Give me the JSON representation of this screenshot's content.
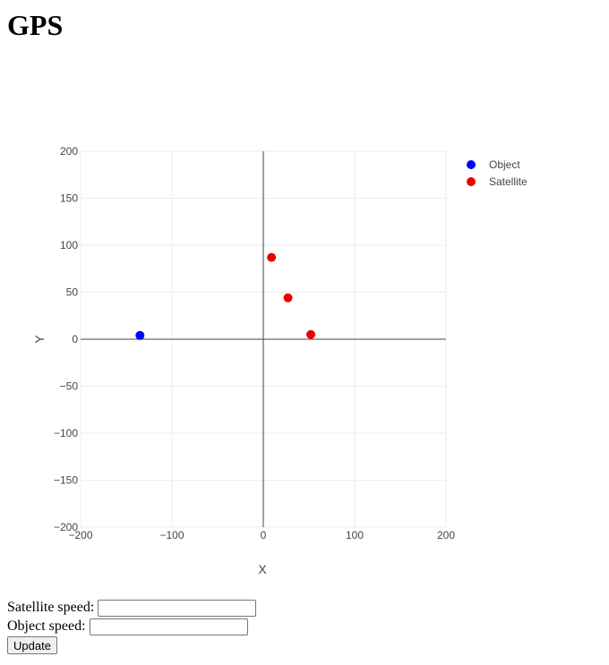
{
  "page": {
    "title": "GPS"
  },
  "chart_data": {
    "type": "scatter",
    "title": "",
    "xlabel": "X",
    "ylabel": "Y",
    "xlim": [
      -200,
      200
    ],
    "ylim": [
      -200,
      200
    ],
    "xticks": [
      -200,
      -100,
      0,
      100,
      200
    ],
    "yticks": [
      -200,
      -150,
      -100,
      -50,
      0,
      50,
      100,
      150,
      200
    ],
    "grid": true,
    "zero_lines": true,
    "legend_position": "top-right",
    "series": [
      {
        "name": "Object",
        "color": "#0000ff",
        "points": [
          [
            -135,
            4
          ]
        ]
      },
      {
        "name": "Satellite",
        "color": "#ee0000",
        "points": [
          [
            9,
            87
          ],
          [
            27,
            44
          ],
          [
            52,
            5
          ]
        ]
      }
    ]
  },
  "controls": {
    "satellite_speed_label": "Satellite speed:",
    "satellite_speed_value": "",
    "object_speed_label": "Object speed:",
    "object_speed_value": "",
    "update_label": "Update"
  }
}
